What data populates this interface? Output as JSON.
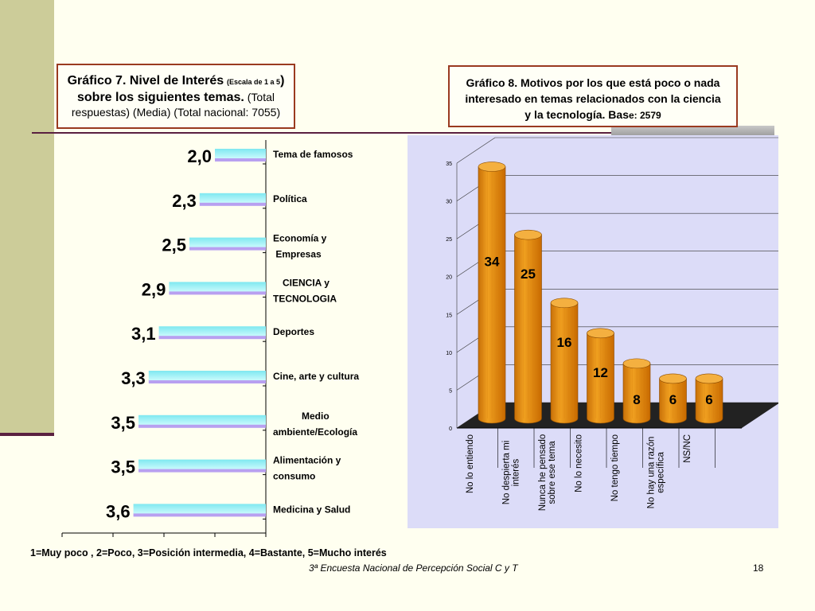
{
  "chart1": {
    "title_main": "Gráfico 7. Nivel de Interés",
    "title_small": "(Escala de 1 a 5",
    "title_close": ")",
    "title_line2_bold": "sobre los siguientes temas.",
    "title_line2_rest": "(Total",
    "title_line3": "respuestas) (Media) (Total nacional: 7055)"
  },
  "chart2": {
    "title_line1": "Gráfico 8. Motivos por los que está poco o nada",
    "title_line2": "interesado en temas relacionados con la ciencia",
    "title_line3_a": "y la tecnología. Bas",
    "title_line3_b": "e: 2579"
  },
  "chart_data": [
    {
      "type": "bar",
      "orientation": "horizontal-reversed",
      "categories": [
        "Tema de famosos",
        "Política",
        "Economía y Empresas",
        "CIENCIA y TECNOLOGIA",
        "Deportes",
        "Cine, arte y cultura",
        "Medio ambiente/Ecología",
        "Alimentación y consumo",
        "Medicina y Salud"
      ],
      "values": [
        2.0,
        2.3,
        2.5,
        2.9,
        3.1,
        3.3,
        3.5,
        3.5,
        3.6
      ],
      "value_labels": [
        "2,0",
        "2,3",
        "2,5",
        "2,9",
        "3,1",
        "3,3",
        "3,5",
        "3,5",
        "3,6"
      ],
      "xlim": [
        1,
        5
      ],
      "x_ticks": [
        "5",
        "4",
        "3",
        "2",
        "1"
      ],
      "bar_color": "#7fe8f0",
      "bar_shadow_color": "#b8a0f0"
    },
    {
      "type": "bar",
      "style": "3d-cylinder",
      "categories": [
        "No lo entiendo",
        "No despierta mi interés",
        "Nunca he pensado sobre ese tema",
        "No lo necesito",
        "No tengo tiempo",
        "No hay una razón específica",
        "NS/NC"
      ],
      "values": [
        34,
        25,
        16,
        12,
        8,
        6,
        6
      ],
      "ylim": [
        0,
        35
      ],
      "y_ticks": [
        "0",
        "5",
        "10",
        "15",
        "20",
        "25",
        "30",
        "35"
      ],
      "bar_color": "#f0a020",
      "background": "#dcdcf8"
    }
  ],
  "footer": {
    "scale_note": "1=Muy poco , 2=Poco, 3=Posición intermedia, 4=Bastante, 5=Mucho interés",
    "source": "3ª Encuesta Nacional de Percepción Social C y T",
    "page": "18"
  }
}
